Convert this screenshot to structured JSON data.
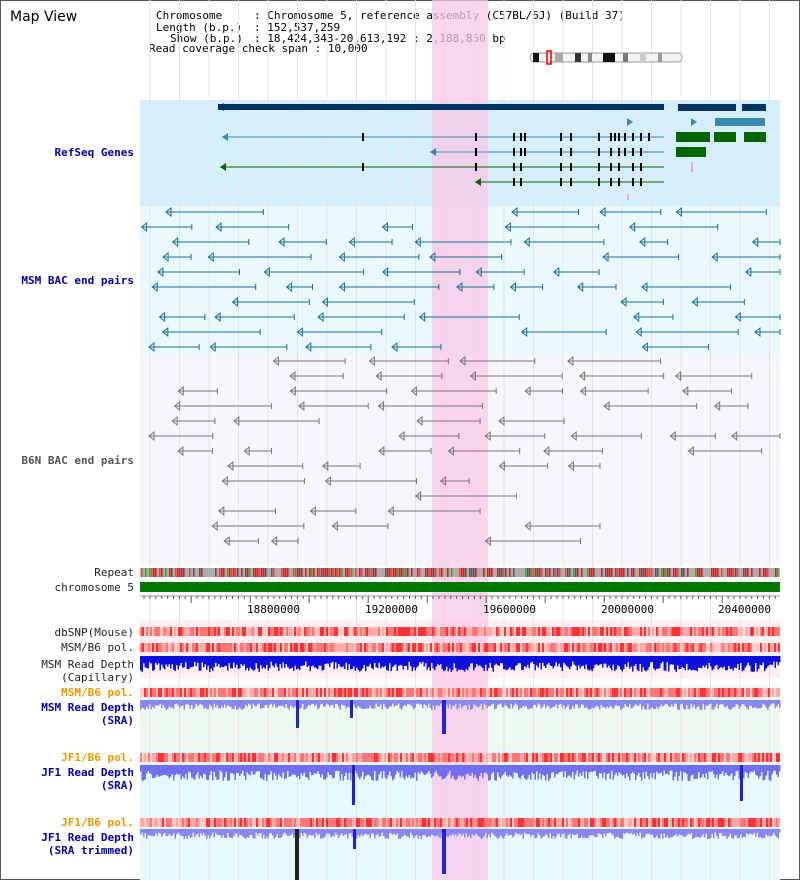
{
  "title": "Map View",
  "info": {
    "chromosome_key": "Chromosome",
    "chromosome_val": "Chromosome 5, reference assembly (C57BL/6J) (Build 37)",
    "length_key": "Length (b.p.)",
    "length_val": "152,537,259",
    "show_key": "Show (b.p.)",
    "show_val": "18,424,343-20,613,192 : 2,188,850 bp",
    "coverage_key": "Read coverage check span",
    "coverage_val": "10,000"
  },
  "tracks": {
    "refseq": "RefSeq Genes",
    "msm_bac": "MSM BAC end pairs",
    "b6n_bac": "B6N BAC end pairs",
    "repeat": "Repeat",
    "chromosome": "chromosome 5",
    "dbsnp": "dbSNP(Mouse)",
    "msm_b6_pol": "MSM/B6 pol.",
    "msm_depth_cap_1": "MSM Read Depth",
    "msm_depth_cap_2": "(Capillary)",
    "msm_b6_pol_2": "MSM/B6 pol.",
    "msm_depth_sra_1": "MSM Read Depth",
    "msm_depth_sra_2": "(SRA)",
    "jf1_b6_pol": "JF1/B6 pol.",
    "jf1_depth_1": "JF1 Read Depth",
    "jf1_depth_2": "(SRA)",
    "jf1_b6_pol_2": "JF1/B6 pol.",
    "jf1_trim_1": "JF1 Read Depth",
    "jf1_trim_2": "(SRA trimmed)"
  },
  "axis_ticks": [
    "18800000",
    "19200000",
    "19600000",
    "20000000",
    "20400000"
  ],
  "colors": {
    "refseq_bg": "#d6eefa",
    "msm_bg": "#e8f8fc",
    "b6n_bg": "#f6f6fa",
    "highlight": "#f8c8e8",
    "gene_dark": "#003366",
    "gene_teal": "#3a8ab0",
    "gene_green": "#006600",
    "bac_msm": "#1a7090",
    "bac_b6n": "#777777",
    "chromosome": "#007700",
    "depth_blue": "#0000dd",
    "depth_light": "#7777ee",
    "pol_red": "#ff6666"
  }
}
